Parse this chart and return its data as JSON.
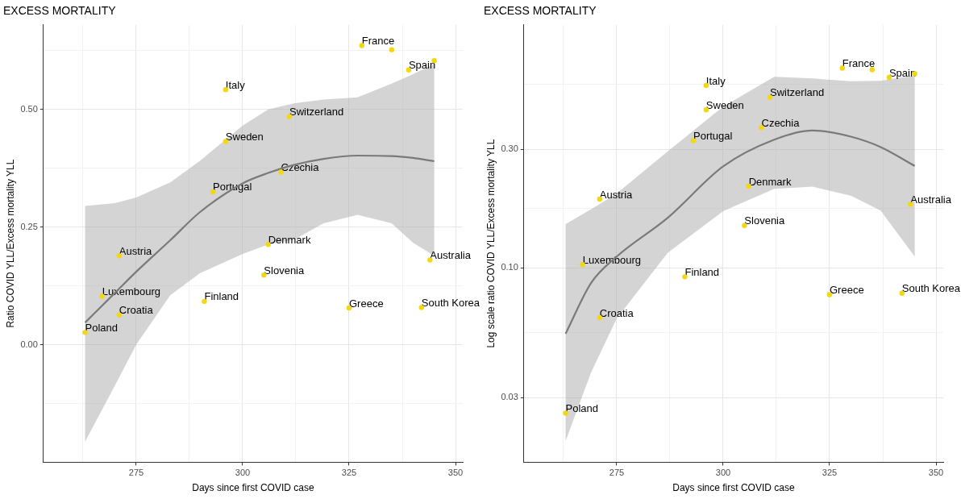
{
  "chart_data": [
    {
      "type": "scatter",
      "title": "EXCESS MORTALITY",
      "xlabel": "Days since first COVID case",
      "ylabel": "Ratio COVID YLL/Excess mortality YLL",
      "grid": true,
      "xlim": [
        253.2,
        351.7
      ],
      "xticks": [
        {
          "value": 262.5,
          "label": null
        },
        275,
        {
          "value": 287.5,
          "label": null
        },
        300,
        {
          "value": 312.5,
          "label": null
        },
        325,
        {
          "value": 337.5,
          "label": null
        },
        350
      ],
      "ylim": [
        -0.25,
        0.68
      ],
      "yticks": [
        {
          "value": -0.125,
          "label": null
        },
        {
          "value": 0,
          "label": "0.00"
        },
        {
          "value": 0.125,
          "label": null
        },
        {
          "value": 0.25,
          "label": "0.25"
        },
        {
          "value": 0.375,
          "label": null
        },
        {
          "value": 0.5,
          "label": "0.50"
        },
        {
          "value": 0.625,
          "label": null
        }
      ],
      "series": [
        {
          "marker": "circle",
          "color": "#f2d80f",
          "x": [
            263,
            267,
            271,
            271,
            291,
            305,
            306,
            325,
            342,
            344,
            296,
            296,
            293,
            311,
            309,
            328,
            335,
            339,
            345
          ],
          "values": [
            0.026,
            0.103,
            0.063,
            0.189,
            0.092,
            0.148,
            0.213,
            0.078,
            0.079,
            0.18,
            0.542,
            0.432,
            0.325,
            0.485,
            0.367,
            0.636,
            0.627,
            0.584,
            0.604
          ]
        },
        {
          "type": "line",
          "marker": "none",
          "color": "#7a7a7a",
          "x": [
            263,
            270,
            275,
            283,
            290,
            300,
            306,
            312,
            319,
            327,
            335,
            340,
            345
          ],
          "values": [
            0.047,
            0.11,
            0.155,
            0.222,
            0.282,
            0.343,
            0.365,
            0.382,
            0.395,
            0.402,
            0.401,
            0.397,
            0.39
          ],
          "lower": [
            -0.206,
            -0.087,
            0.0,
            0.105,
            0.152,
            0.193,
            0.213,
            0.223,
            0.258,
            0.276,
            0.258,
            0.217,
            0.189
          ],
          "upper": [
            0.295,
            0.301,
            0.313,
            0.345,
            0.391,
            0.466,
            0.5,
            0.513,
            0.521,
            0.526,
            0.555,
            0.575,
            0.597
          ]
        }
      ],
      "annotations": [
        {
          "text": "Poland",
          "x": 263,
          "y": 0.026
        },
        {
          "text": "Luxembourg",
          "x": 267,
          "y": 0.103
        },
        {
          "text": "Croatia",
          "x": 271,
          "y": 0.063
        },
        {
          "text": "Austria",
          "x": 271,
          "y": 0.189
        },
        {
          "text": "Finland",
          "x": 291,
          "y": 0.092
        },
        {
          "text": "Slovenia",
          "x": 305,
          "y": 0.148
        },
        {
          "text": "Denmark",
          "x": 306,
          "y": 0.213
        },
        {
          "text": "Greece",
          "x": 325,
          "y": 0.078
        },
        {
          "text": "South Korea",
          "x": 342,
          "y": 0.079
        },
        {
          "text": "Australia",
          "x": 344,
          "y": 0.18
        },
        {
          "text": "Italy",
          "x": 296,
          "y": 0.542
        },
        {
          "text": "Sweden",
          "x": 296,
          "y": 0.432
        },
        {
          "text": "Portugal",
          "x": 293,
          "y": 0.325
        },
        {
          "text": "Switzerland",
          "x": 311,
          "y": 0.485
        },
        {
          "text": "Czechia",
          "x": 309,
          "y": 0.367
        },
        {
          "text": "France",
          "x": 328,
          "y": 0.636
        },
        {
          "text": "Spain",
          "x": 339,
          "y": 0.584
        }
      ]
    },
    {
      "type": "scatter",
      "title": "EXCESS MORTALITY",
      "xlabel": "Days since first COVID case",
      "ylabel": "Log scale ratio COVID YLL/Excess mortality YLL",
      "grid": true,
      "log": "y",
      "xlim": [
        253.2,
        351.7
      ],
      "xticks": [
        {
          "value": 262.5,
          "label": null
        },
        275,
        {
          "value": 287.5,
          "label": null
        },
        300,
        {
          "value": 312.5,
          "label": null
        },
        325,
        {
          "value": 337.5,
          "label": null
        },
        350
      ],
      "ylim": [
        0.0165,
        0.95
      ],
      "yticks": [
        {
          "value": 0.03,
          "label": "0.03"
        },
        {
          "value": 0.055,
          "label": null
        },
        {
          "value": 0.1,
          "label": "0.10"
        },
        {
          "value": 0.173,
          "label": null
        },
        {
          "value": 0.3,
          "label": "0.30"
        },
        {
          "value": 0.548,
          "label": null
        }
      ],
      "series": [
        {
          "marker": "circle",
          "color": "#f2d80f",
          "x": [
            263,
            267,
            271,
            271,
            291,
            305,
            306,
            325,
            342,
            344,
            296,
            296,
            293,
            311,
            309,
            328,
            335,
            339,
            345
          ],
          "values": [
            0.026,
            0.103,
            0.063,
            0.189,
            0.092,
            0.148,
            0.213,
            0.078,
            0.079,
            0.18,
            0.542,
            0.432,
            0.325,
            0.485,
            0.367,
            0.636,
            0.627,
            0.584,
            0.604
          ]
        },
        {
          "type": "line",
          "marker": "none",
          "color": "#7a7a7a",
          "x": [
            263,
            269,
            275,
            287,
            300,
            312,
            321,
            330,
            337,
            345
          ],
          "values": [
            0.0543,
            0.087,
            0.111,
            0.159,
            0.256,
            0.328,
            0.357,
            0.337,
            0.306,
            0.257
          ],
          "lower": [
            0.0201,
            0.038,
            0.0625,
            0.115,
            0.169,
            0.208,
            0.212,
            0.195,
            0.17,
            0.111
          ],
          "upper": [
            0.15,
            0.172,
            0.199,
            0.294,
            0.445,
            0.587,
            0.578,
            0.563,
            0.565,
            0.595
          ]
        }
      ],
      "annotations": [
        {
          "text": "Poland",
          "x": 263,
          "y": 0.026
        },
        {
          "text": "Luxembourg",
          "x": 267,
          "y": 0.103
        },
        {
          "text": "Croatia",
          "x": 271,
          "y": 0.063
        },
        {
          "text": "Austria",
          "x": 271,
          "y": 0.189
        },
        {
          "text": "Finland",
          "x": 291,
          "y": 0.092
        },
        {
          "text": "Slovenia",
          "x": 305,
          "y": 0.148
        },
        {
          "text": "Denmark",
          "x": 306,
          "y": 0.213
        },
        {
          "text": "Greece",
          "x": 325,
          "y": 0.078
        },
        {
          "text": "South Korea",
          "x": 342,
          "y": 0.079
        },
        {
          "text": "Australia",
          "x": 344,
          "y": 0.18
        },
        {
          "text": "Italy",
          "x": 296,
          "y": 0.542
        },
        {
          "text": "Sweden",
          "x": 296,
          "y": 0.432
        },
        {
          "text": "Portugal",
          "x": 293,
          "y": 0.325
        },
        {
          "text": "Switzerland",
          "x": 311,
          "y": 0.485
        },
        {
          "text": "Czechia",
          "x": 309,
          "y": 0.367
        },
        {
          "text": "France",
          "x": 328,
          "y": 0.636
        },
        {
          "text": "Spain",
          "x": 339,
          "y": 0.584
        }
      ]
    }
  ]
}
